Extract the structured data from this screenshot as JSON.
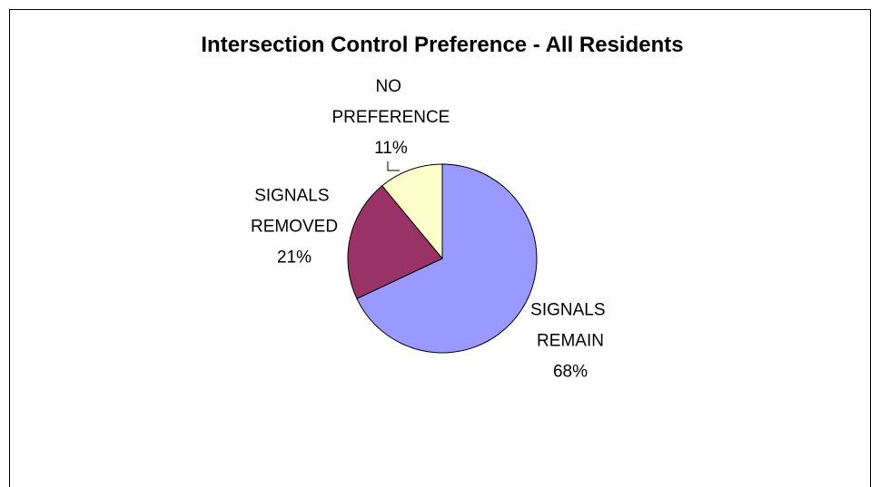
{
  "chart_data": {
    "type": "pie",
    "title": "Intersection Control Preference - All Residents",
    "categories": [
      "SIGNALS REMAIN",
      "SIGNALS REMOVED",
      "NO PREFERENCE"
    ],
    "values": [
      68,
      21,
      11
    ],
    "value_labels": [
      "68%",
      "21%",
      "11%"
    ],
    "colors": [
      "#9999ff",
      "#993366",
      "#ffffcc"
    ]
  }
}
